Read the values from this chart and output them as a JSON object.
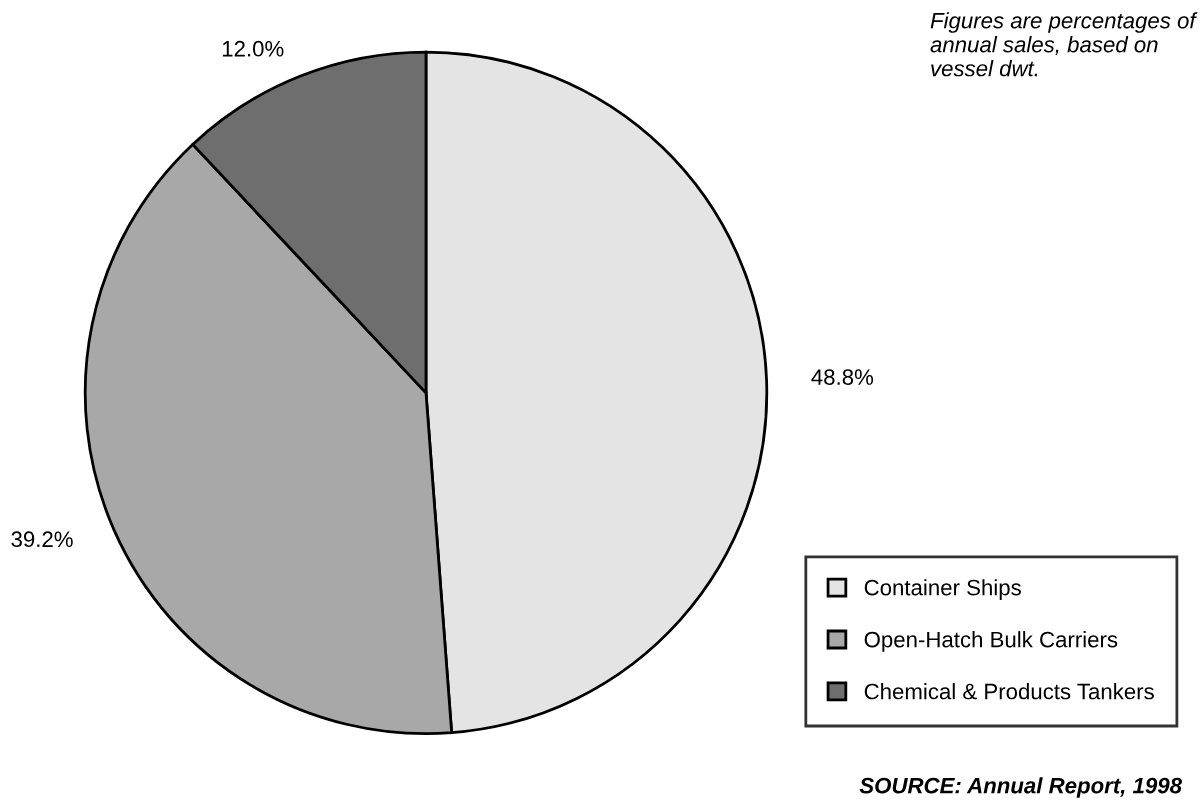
{
  "chart_data": {
    "type": "pie",
    "categories": [
      "Container Ships",
      "Open-Hatch Bulk Carriers",
      "Chemical & Products Tankers"
    ],
    "values": [
      48.8,
      39.2,
      12.0
    ],
    "value_labels": [
      "48.8%",
      "39.2%",
      "12.0%"
    ],
    "colors": [
      "#e4e4e4",
      "#a8a8a8",
      "#6e6e6e"
    ],
    "legend": "bottom right",
    "annotations": [
      "Figures are percentages of annual sales, based on vessel dwt.",
      "SOURCE: Annual Report, 1998"
    ]
  }
}
